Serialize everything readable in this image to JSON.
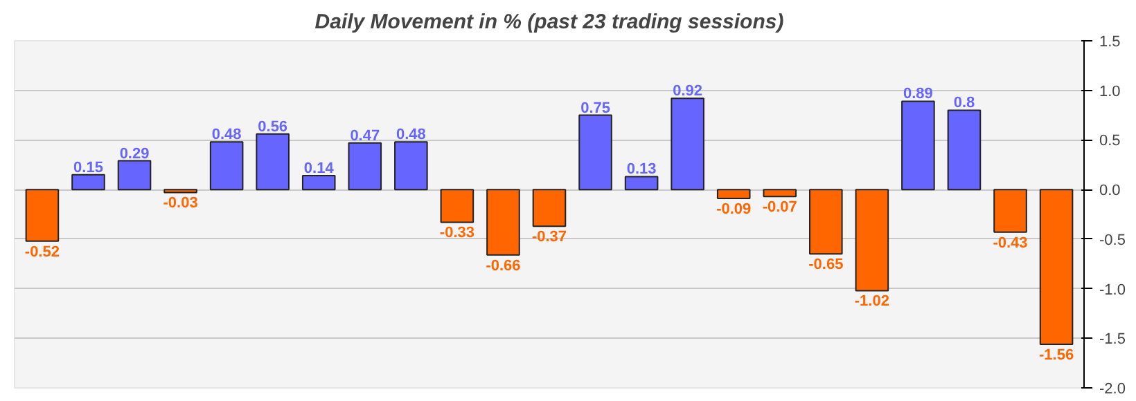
{
  "chart_data": {
    "type": "bar",
    "title": "Daily Movement in % (past 23 trading sessions)",
    "categories": [
      null,
      null,
      null,
      null,
      null,
      null,
      null,
      null,
      null,
      null,
      null,
      null,
      null,
      null,
      null,
      null,
      null,
      null,
      null,
      null,
      null,
      null,
      null
    ],
    "values": [
      -0.52,
      0.15,
      0.29,
      -0.03,
      0.48,
      0.56,
      0.14,
      0.47,
      0.48,
      -0.33,
      -0.66,
      -0.37,
      0.75,
      0.13,
      0.92,
      -0.09,
      -0.07,
      -0.65,
      -1.02,
      0.89,
      0.8,
      -0.43,
      -1.56
    ],
    "colors": [
      "#ff6600",
      "#6666ff",
      "#6666ff",
      "#ff6600",
      "#6666ff",
      "#6666ff",
      "#6666ff",
      "#6666ff",
      "#6666ff",
      "#ff6600",
      "#ff6600",
      "#ff6600",
      "#6666ff",
      "#6666ff",
      "#6666ff",
      "#ff6600",
      "#ff6600",
      "#ff6600",
      "#ff6600",
      "#6666ff",
      "#6666ff",
      "#ff6600",
      "#ff6600"
    ],
    "ylim": [
      -2.0,
      1.5
    ],
    "yticks": [
      {
        "value": -2.0,
        "label": "-2.0"
      },
      {
        "value": -1.5,
        "label": "-1.5"
      },
      {
        "value": -1.0,
        "label": "-1.0"
      },
      {
        "value": -0.5,
        "label": "-0.5"
      },
      {
        "value": 0,
        "label": "0.0"
      },
      {
        "value": 0.5,
        "label": "0.5"
      },
      {
        "value": 1.0,
        "label": "1.0"
      },
      {
        "value": 1.5,
        "label": "1.5"
      }
    ],
    "grid": "y",
    "data_labels": true,
    "tick_labels": "y"
  }
}
